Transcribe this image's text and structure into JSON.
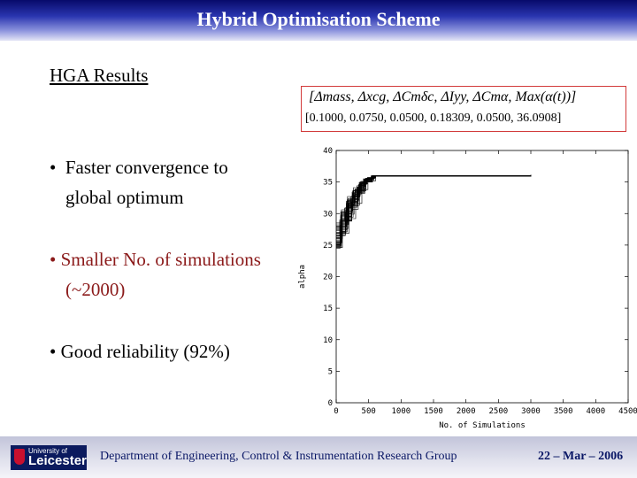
{
  "slide": {
    "title": "Hybrid Optimisation Scheme",
    "subheading": "HGA Results",
    "formula": "[Δmass, Δxcg, ΔCmδc, ΔIyy, ΔCmα, Max(α(t))]",
    "formula_values": "[0.1000,  0.0750,  0.0500,  0.18309,  0.0500,  36.0908]",
    "bullets": [
      {
        "marker": "•",
        "line1": "Faster convergence to",
        "line2": "global optimum"
      },
      {
        "marker": "•",
        "line1": "Smaller No. of simulations",
        "line2": "(~2000)"
      },
      {
        "marker": "•",
        "line1": "Good reliability (92%)",
        "line2": ""
      }
    ]
  },
  "footer": {
    "logo_small": "University of",
    "logo_big": "Leicester",
    "department": "Department of Engineering, Control & Instrumentation Research Group",
    "date": "22 – Mar – 2006"
  },
  "colors": {
    "title_bar": "#2a35b0",
    "bullet_highlight": "#8b1a1a",
    "formula_border": "#d23a3a",
    "footer_text": "#0a1766",
    "series": "#000000"
  },
  "chart_data": {
    "type": "line",
    "xlabel": "No. of Simulations",
    "ylabel": "alpha",
    "xlim": [
      0,
      4500
    ],
    "ylim": [
      0,
      40
    ],
    "xticks": [
      0,
      500,
      1000,
      1500,
      2000,
      2500,
      3000,
      3500,
      4000,
      4500
    ],
    "yticks": [
      0,
      5,
      10,
      15,
      20,
      25,
      30,
      35,
      40
    ],
    "grid": false,
    "final_value": 36.0908,
    "converged_x_end": 3000,
    "series_count": 30,
    "series": [
      {
        "x": [
          0,
          70,
          150,
          230,
          320,
          420,
          540,
          3000
        ],
        "y": [
          25.0,
          27.2,
          29.5,
          31.8,
          34.0,
          35.3,
          36.0,
          36.1
        ]
      },
      {
        "x": [
          0,
          80,
          170,
          260,
          360,
          470,
          580,
          3000
        ],
        "y": [
          26.1,
          28.4,
          31.0,
          32.6,
          34.7,
          35.6,
          36.0,
          36.1
        ]
      },
      {
        "x": [
          0,
          60,
          140,
          240,
          340,
          440,
          560,
          3000
        ],
        "y": [
          24.8,
          26.5,
          28.9,
          30.7,
          33.2,
          35.0,
          35.9,
          36.1
        ]
      },
      {
        "x": [
          0,
          90,
          190,
          290,
          380,
          480,
          600,
          3000
        ],
        "y": [
          27.3,
          29.8,
          32.1,
          33.9,
          35.1,
          35.7,
          36.0,
          36.1
        ]
      },
      {
        "x": [
          0,
          75,
          160,
          250,
          350,
          450,
          570,
          3000
        ],
        "y": [
          25.6,
          27.9,
          30.4,
          32.2,
          34.4,
          35.5,
          36.0,
          36.1
        ]
      },
      {
        "x": [
          0,
          65,
          145,
          235,
          330,
          430,
          550,
          3000
        ],
        "y": [
          26.8,
          28.1,
          30.0,
          31.5,
          33.6,
          35.1,
          35.9,
          36.1
        ]
      },
      {
        "x": [
          0,
          85,
          180,
          275,
          370,
          465,
          590,
          3000
        ],
        "y": [
          25.3,
          27.6,
          29.9,
          32.8,
          34.9,
          35.6,
          36.0,
          36.1
        ]
      },
      {
        "x": [
          0,
          70,
          155,
          245,
          345,
          440,
          565,
          3000
        ],
        "y": [
          27.9,
          30.2,
          31.9,
          33.4,
          34.6,
          35.4,
          35.9,
          36.1
        ]
      },
      {
        "x": [
          0,
          95,
          200,
          300,
          395,
          490,
          610,
          3000
        ],
        "y": [
          24.6,
          26.9,
          29.2,
          31.6,
          33.8,
          35.2,
          36.0,
          36.1
        ]
      },
      {
        "x": [
          0,
          55,
          135,
          225,
          325,
          425,
          545,
          3000
        ],
        "y": [
          26.4,
          28.7,
          30.9,
          32.4,
          34.2,
          35.4,
          36.0,
          36.1
        ]
      },
      {
        "x": [
          0,
          80,
          175,
          265,
          365,
          460,
          575,
          3000
        ],
        "y": [
          28.2,
          30.6,
          32.7,
          34.1,
          35.0,
          35.6,
          36.0,
          36.1
        ]
      },
      {
        "x": [
          0,
          60,
          150,
          240,
          335,
          435,
          555,
          3000
        ],
        "y": [
          25.1,
          27.0,
          28.8,
          31.2,
          33.5,
          35.0,
          35.9,
          36.1
        ]
      },
      {
        "x": [
          0,
          90,
          185,
          285,
          385,
          475,
          595,
          3000
        ],
        "y": [
          26.6,
          29.1,
          31.4,
          33.1,
          34.8,
          35.6,
          36.0,
          36.1
        ]
      },
      {
        "x": [
          0,
          70,
          165,
          255,
          355,
          455,
          560,
          3000
        ],
        "y": [
          24.9,
          27.4,
          30.1,
          32.0,
          33.9,
          35.3,
          36.0,
          36.1
        ]
      },
      {
        "x": [
          0,
          75,
          160,
          250,
          345,
          445,
          570,
          3000
        ],
        "y": [
          27.0,
          29.3,
          31.2,
          33.0,
          34.5,
          35.5,
          36.0,
          36.1
        ]
      },
      {
        "x": [
          0,
          65,
          140,
          230,
          330,
          430,
          550,
          3000
        ],
        "y": [
          25.8,
          28.0,
          30.6,
          32.3,
          34.1,
          35.3,
          35.9,
          36.1
        ]
      },
      {
        "x": [
          0,
          85,
          180,
          270,
          370,
          470,
          585,
          3000
        ],
        "y": [
          28.5,
          30.0,
          32.4,
          33.7,
          34.9,
          35.6,
          36.0,
          36.1
        ]
      },
      {
        "x": [
          0,
          60,
          145,
          235,
          340,
          440,
          560,
          3000
        ],
        "y": [
          25.4,
          26.8,
          29.6,
          31.9,
          33.7,
          35.1,
          35.9,
          36.1
        ]
      },
      {
        "x": [
          0,
          95,
          195,
          295,
          390,
          485,
          600,
          3000
        ],
        "y": [
          26.2,
          28.9,
          31.7,
          33.5,
          34.7,
          35.6,
          36.0,
          36.1
        ]
      },
      {
        "x": [
          0,
          70,
          155,
          245,
          350,
          450,
          565,
          3000
        ],
        "y": [
          27.6,
          29.5,
          31.1,
          32.9,
          34.3,
          35.4,
          36.0,
          36.1
        ]
      },
      {
        "x": [
          0,
          80,
          170,
          260,
          360,
          460,
          580,
          3000
        ],
        "y": [
          24.7,
          27.1,
          29.4,
          31.3,
          33.6,
          35.2,
          36.0,
          36.1
        ]
      },
      {
        "x": [
          0,
          55,
          130,
          220,
          320,
          420,
          540,
          3000
        ],
        "y": [
          26.9,
          29.0,
          30.8,
          32.6,
          34.4,
          35.5,
          35.9,
          36.1
        ]
      },
      {
        "x": [
          0,
          90,
          190,
          280,
          380,
          475,
          590,
          3000
        ],
        "y": [
          25.5,
          28.3,
          31.5,
          33.3,
          34.8,
          35.6,
          36.0,
          36.1
        ]
      },
      {
        "x": [
          0,
          75,
          165,
          255,
          355,
          455,
          570,
          3000
        ],
        "y": [
          28.0,
          30.3,
          32.0,
          33.6,
          34.9,
          35.6,
          36.0,
          36.1
        ]
      },
      {
        "x": [
          0,
          65,
          150,
          240,
          335,
          435,
          555,
          3000
        ],
        "y": [
          25.2,
          27.8,
          30.3,
          31.8,
          33.9,
          35.2,
          35.9,
          36.1
        ]
      },
      {
        "x": [
          0,
          85,
          175,
          265,
          365,
          465,
          585,
          3000
        ],
        "y": [
          26.5,
          28.6,
          31.3,
          32.7,
          34.6,
          35.5,
          36.0,
          36.1
        ]
      },
      {
        "x": [
          0,
          70,
          160,
          250,
          345,
          445,
          560,
          3000
        ],
        "y": [
          27.4,
          29.7,
          31.6,
          33.2,
          34.5,
          35.4,
          36.0,
          36.1
        ]
      },
      {
        "x": [
          0,
          60,
          140,
          230,
          325,
          425,
          545,
          3000
        ],
        "y": [
          24.5,
          26.6,
          29.0,
          31.0,
          33.3,
          35.0,
          35.9,
          36.1
        ]
      },
      {
        "x": [
          0,
          95,
          200,
          295,
          395,
          490,
          605,
          3000
        ],
        "y": [
          26.0,
          28.8,
          31.8,
          33.8,
          35.0,
          35.7,
          36.0,
          36.1
        ]
      },
      {
        "x": [
          0,
          80,
          170,
          260,
          360,
          460,
          575,
          3000
        ],
        "y": [
          27.8,
          30.1,
          32.2,
          33.6,
          34.7,
          35.5,
          36.0,
          36.1
        ]
      }
    ]
  }
}
